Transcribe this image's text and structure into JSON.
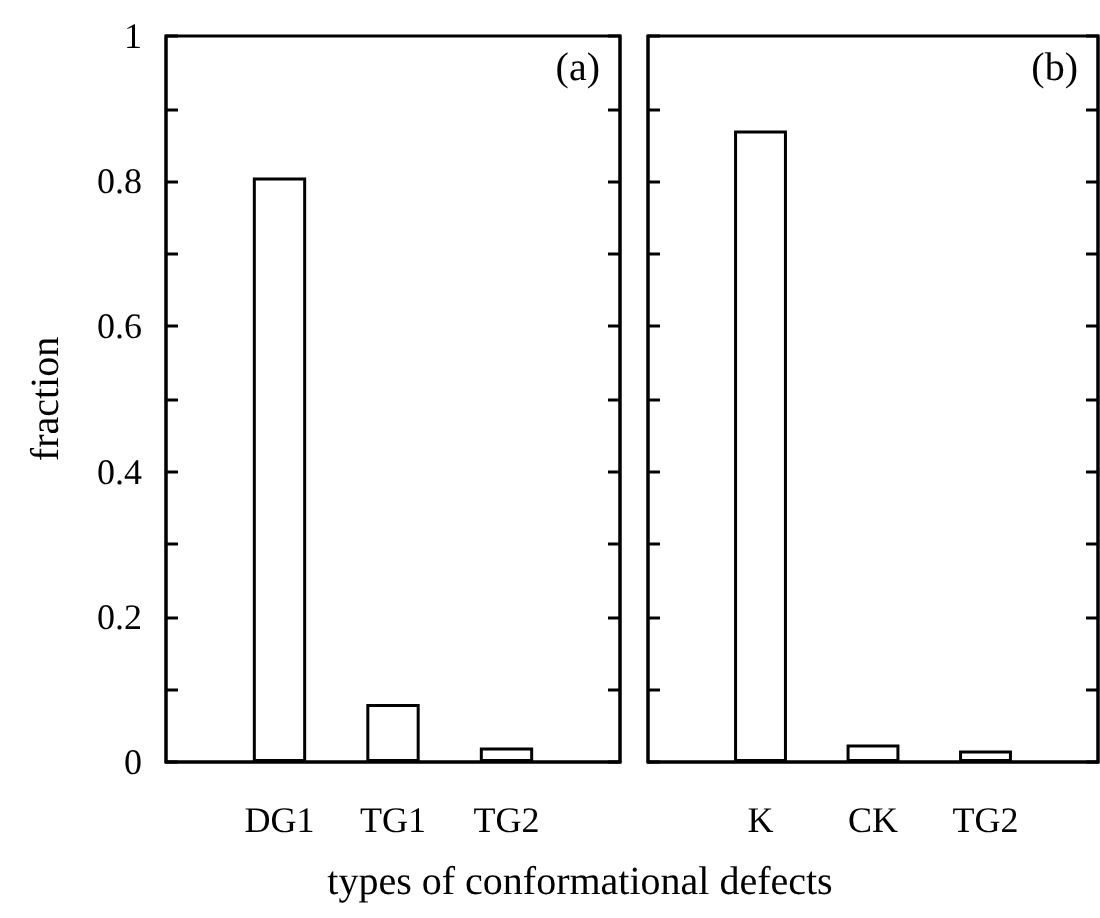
{
  "chart_data": [
    {
      "type": "bar",
      "categories": [
        "DG1",
        "TG1",
        "TG2"
      ],
      "values": [
        0.805,
        0.08,
        0.02
      ],
      "color": "#ffffff",
      "ylabel": "fraction",
      "xlabel": "types of conformational defects",
      "annotations": [
        "(a)"
      ],
      "ylim": [
        0,
        1
      ],
      "yticks": [
        0,
        {
          "value": 0.1,
          "label": null
        },
        0.2,
        {
          "value": 0.3,
          "label": null
        },
        0.4,
        {
          "value": 0.5,
          "label": null
        },
        0.6,
        {
          "value": 0.7,
          "label": null
        },
        0.8,
        {
          "value": 0.9,
          "label": null
        },
        1
      ]
    },
    {
      "type": "bar",
      "categories": [
        "K",
        "CK",
        "TG2"
      ],
      "values": [
        0.87,
        0.024,
        0.016
      ],
      "color": "#ffffff",
      "annotations": [
        "(b)"
      ],
      "tick_labels": "x",
      "ylim": [
        0,
        1
      ],
      "yticks": [
        {
          "value": 0,
          "label": null
        },
        {
          "value": 0.1,
          "label": null
        },
        {
          "value": 0.2,
          "label": null
        },
        {
          "value": 0.3,
          "label": null
        },
        {
          "value": 0.4,
          "label": null
        },
        {
          "value": 0.5,
          "label": null
        },
        {
          "value": 0.6,
          "label": null
        },
        {
          "value": 0.7,
          "label": null
        },
        {
          "value": 0.8,
          "label": null
        },
        {
          "value": 0.9,
          "label": null
        },
        {
          "value": 1,
          "label": null
        }
      ]
    }
  ]
}
